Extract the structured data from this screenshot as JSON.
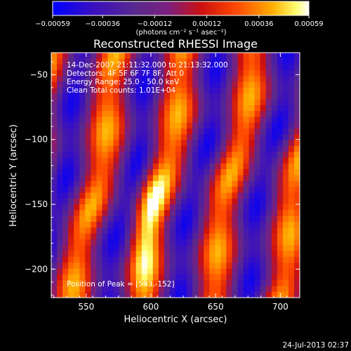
{
  "chart_data": {
    "type": "heatmap",
    "title": "Reconstructed RHESSI Image",
    "xlabel": "Heliocentric X (arcsec)",
    "ylabel": "Heliocentric Y (arcsec)",
    "xlim": [
      523,
      715
    ],
    "ylim": [
      -222,
      -33
    ],
    "x_ticks": [
      550,
      600,
      650,
      700
    ],
    "y_ticks": [
      -50,
      -100,
      -150,
      -200
    ],
    "x_tick_labels": [
      "550",
      "600",
      "650",
      "700"
    ],
    "y_tick_labels": [
      "−50",
      "−100",
      "−150",
      "−200"
    ],
    "colorbar": {
      "min": -0.00059,
      "max": 0.00059,
      "tick_labels": [
        "−0.00059",
        "−0.00036",
        "−0.00012",
        "0.00012",
        "0.00036",
        "0.00059"
      ],
      "units_label": "(photons cm⁻² s⁻¹ asec⁻²)",
      "colors": [
        "#0000ff",
        "#4a1aa8",
        "#5a2a8c",
        "#8c1f7a",
        "#cc1010",
        "#ff5a00",
        "#ffb000",
        "#ffff80",
        "#ffffff"
      ]
    },
    "annotations": [
      "14-Dec-2007 21:11:32.000 to 21:13:32.000",
      "Detectors: 4F 5F 6F 7F 8F, Att 0",
      "Energy Range: 25.0 - 50.0 keV",
      "Clean     Total counts: 1.01E+04"
    ],
    "peak_label": "Position of Peak = [593,-152]",
    "peak": [
      593,
      -152
    ],
    "timestamp": "24-Jul-2013 02:37"
  }
}
